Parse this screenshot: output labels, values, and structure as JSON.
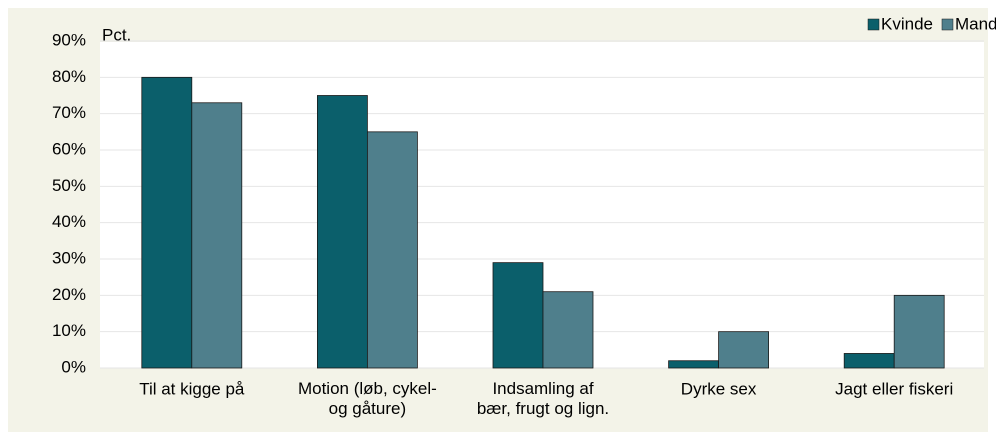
{
  "chart_data": {
    "type": "bar",
    "y_label": "Pct.",
    "categories": [
      "Til at kigge på",
      "Motion (løb, cykel-\nog gåture)",
      "Indsamling af\nbær, frugt og lign.",
      "Dyrke sex",
      "Jagt eller fiskeri"
    ],
    "series": [
      {
        "name": "Kvinde",
        "color": "#0b5f6b",
        "values": [
          80,
          75,
          29,
          2,
          4
        ]
      },
      {
        "name": "Mand",
        "color": "#4f7f8c",
        "values": [
          73,
          65,
          21,
          10,
          20
        ]
      }
    ],
    "ylim": [
      0,
      90
    ],
    "yticks": [
      {
        "value": 0,
        "label": "0%"
      },
      {
        "value": 10,
        "label": "10%"
      },
      {
        "value": 20,
        "label": "20%"
      },
      {
        "value": 30,
        "label": "30%"
      },
      {
        "value": 40,
        "label": "40%"
      },
      {
        "value": 50,
        "label": "50%"
      },
      {
        "value": 60,
        "label": "60%"
      },
      {
        "value": 70,
        "label": "70%"
      },
      {
        "value": 80,
        "label": "80%"
      },
      {
        "value": 90,
        "label": "90%"
      }
    ],
    "grid": true,
    "legend": "top-right"
  }
}
